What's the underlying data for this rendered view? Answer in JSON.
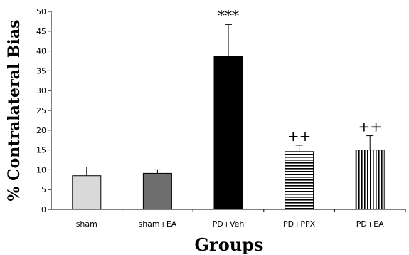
{
  "chart_data": {
    "type": "bar",
    "categories": [
      "sham",
      "sham+EA",
      "PD+Veh",
      "PD+PPX",
      "PD+EA"
    ],
    "values": [
      8.5,
      9.1,
      38.7,
      14.6,
      15.0
    ],
    "errors": [
      2.2,
      0.9,
      8.0,
      1.6,
      3.6
    ],
    "annotations": [
      "",
      "",
      "***",
      "++",
      "++"
    ],
    "bar_fills": [
      "light-gray-solid",
      "dark-gray-solid",
      "black-solid",
      "horizontal-stripes",
      "vertical-stripes"
    ],
    "colors": {
      "light": "#d9d9d9",
      "dark": "#6e6e6e",
      "black": "#000000"
    },
    "xlabel": "Groups",
    "ylabel": "% Contralateral Bias",
    "ylim": [
      0,
      50
    ],
    "yticks": [
      "0",
      "5",
      "10",
      "15",
      "20",
      "25",
      "30",
      "35",
      "40",
      "45",
      "50"
    ],
    "grid": false
  }
}
